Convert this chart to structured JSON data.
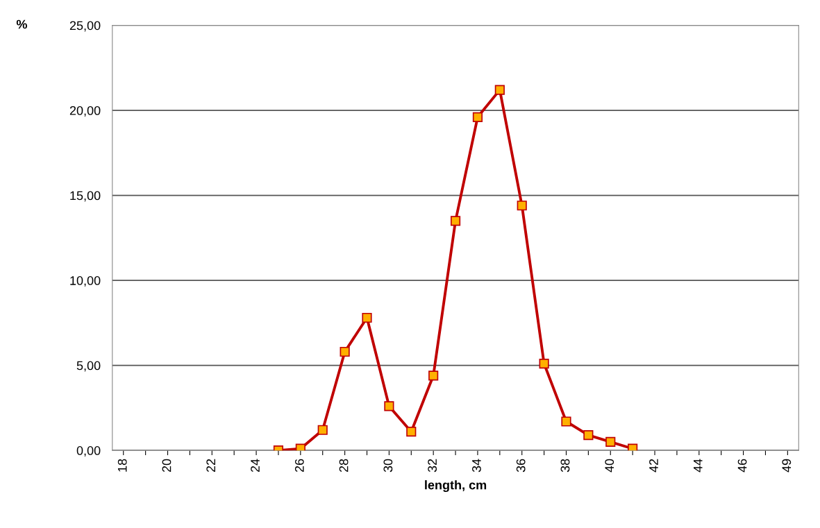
{
  "chart_data": {
    "type": "line",
    "xlabel": "length, cm",
    "ylabel": "%",
    "categories": [
      "18",
      null,
      "20",
      null,
      "22",
      null,
      "24",
      null,
      "26",
      null,
      "28",
      null,
      "30",
      null,
      "32",
      null,
      "34",
      null,
      "36",
      null,
      "38",
      null,
      "40",
      null,
      "42",
      null,
      "44",
      null,
      "46",
      null,
      "49"
    ],
    "series": [
      {
        "color": "#c00000",
        "values": [
          null,
          null,
          null,
          null,
          null,
          null,
          null,
          0.0,
          0.1,
          1.2,
          5.8,
          7.8,
          2.6,
          1.1,
          4.4,
          13.5,
          19.6,
          21.2,
          14.4,
          5.1,
          1.7,
          0.9,
          0.5,
          0.1,
          null,
          null,
          null,
          null,
          null,
          null,
          null
        ]
      }
    ],
    "ylim": [
      0,
      25
    ],
    "yticks": [
      {
        "value": 0,
        "label": "0,00"
      },
      {
        "value": 5,
        "label": "5,00"
      },
      {
        "value": 10,
        "label": "10,00"
      },
      {
        "value": 15,
        "label": "15,00"
      },
      {
        "value": 20,
        "label": "20,00"
      },
      {
        "value": 25,
        "label": "25,00"
      }
    ],
    "grid": "y",
    "marker": "square",
    "line_style": "solid"
  }
}
